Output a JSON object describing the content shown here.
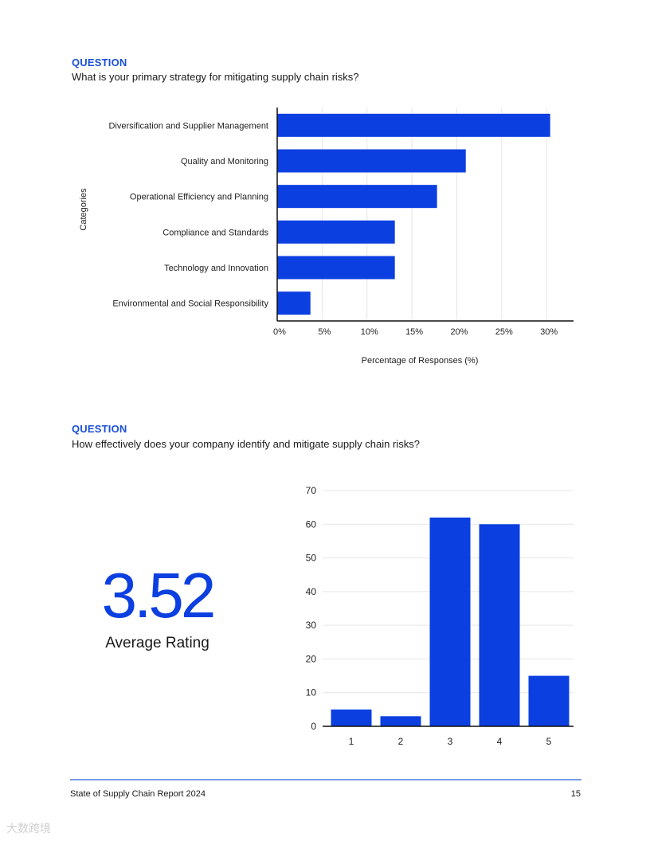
{
  "section1": {
    "label": "QUESTION",
    "question": "What is your primary strategy for mitigating supply chain risks?"
  },
  "section2": {
    "label": "QUESTION",
    "question": "How effectively does your company identify and mitigate supply chain risks?"
  },
  "stat": {
    "value": "3.52",
    "caption": "Average Rating"
  },
  "footer": {
    "title": "State of Supply Chain Report 2024",
    "page": "15"
  },
  "watermark": "大数跨境",
  "colors": {
    "accent": "#0b3fe0",
    "heading": "#1a4fd8",
    "rule": "#7a9ae6"
  },
  "chart_data": [
    {
      "type": "bar",
      "orientation": "horizontal",
      "categories": [
        "Diversification and Supplier Management",
        "Quality and Monitoring",
        "Operational Efficiency and Planning",
        "Compliance and Standards",
        "Technology and Innovation",
        "Environmental and Social Responsibility"
      ],
      "values": [
        30.4,
        21.0,
        17.8,
        13.1,
        13.1,
        3.7
      ],
      "xticks": [
        "0%",
        "5%",
        "10%",
        "15%",
        "20%",
        "25%",
        "30%"
      ],
      "xlim": [
        0,
        33
      ],
      "xlabel": "Percentage of Responses (%)",
      "ylabel": "Categories",
      "grid": true
    },
    {
      "type": "bar",
      "orientation": "vertical",
      "categories": [
        "1",
        "2",
        "3",
        "4",
        "5"
      ],
      "values": [
        5,
        3,
        62,
        60,
        15
      ],
      "yticks": [
        "0",
        "10",
        "20",
        "30",
        "40",
        "50",
        "60",
        "70"
      ],
      "ylim": [
        0,
        70
      ],
      "xlabel": "",
      "ylabel": "",
      "grid": true
    }
  ]
}
